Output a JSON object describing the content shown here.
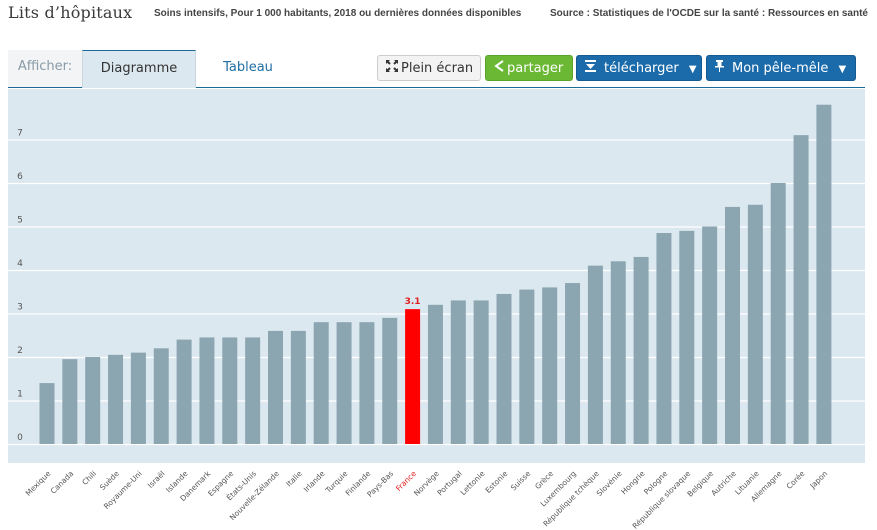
{
  "header": {
    "title": "Lits d’hôpitaux",
    "subtitle": "Soins intensifs, Pour 1 000 habitants, 2018 ou dernières données disponibles",
    "source": "Source : Statistiques de l'OCDE sur la santé : Ressources en santé"
  },
  "toolbar": {
    "afficher_label": "Afficher:",
    "tabs": [
      {
        "label": "Diagramme",
        "active": true
      },
      {
        "label": "Tableau",
        "active": false
      }
    ],
    "buttons": {
      "plein_ecran": {
        "label": "Plein écran",
        "icon": "fullscreen-icon"
      },
      "partager": {
        "label": "partager",
        "icon": "share-icon"
      },
      "telecharger": {
        "label": "télécharger",
        "icon": "download-icon",
        "caret": "▼"
      },
      "pele_mele": {
        "label": "Mon pêle-mêle",
        "icon": "pin-icon",
        "caret": "▼"
      }
    }
  },
  "colors": {
    "bar": "#8ba5b1",
    "highlight": "#ff0000",
    "panel_bg": "#dce8ef",
    "gridline": "#ffffff",
    "accent_blue": "#1b6bab",
    "share_green": "#6ab833"
  },
  "chart_data": {
    "type": "bar",
    "title": "Lits d’hôpitaux",
    "subtitle": "Soins intensifs, Pour 1 000 habitants, 2018 ou dernières données disponibles",
    "xlabel": "",
    "ylabel": "",
    "ylim": [
      0,
      8
    ],
    "yticks": [
      0,
      1,
      2,
      3,
      4,
      5,
      6,
      7
    ],
    "grid": true,
    "highlight": {
      "category": "France",
      "label": "3.1"
    },
    "categories": [
      "Mexique",
      "Canada",
      "Chili",
      "Suède",
      "Royaume-Uni",
      "Israël",
      "Islande",
      "Danemark",
      "Espagne",
      "États-Unis",
      "Nouvelle-Zélande",
      "Italie",
      "Irlande",
      "Turquie",
      "Finlande",
      "Pays-Bas",
      "France",
      "Norvège",
      "Portugal",
      "Lettonie",
      "Estonie",
      "Suisse",
      "Grèce",
      "Luxembourg",
      "République tchèque",
      "Slovénie",
      "Hongrie",
      "Pologne",
      "République slovaque",
      "Belgique",
      "Autriche",
      "Lituanie",
      "Allemagne",
      "Corée",
      "Japon"
    ],
    "values": [
      1.4,
      1.95,
      2.0,
      2.05,
      2.1,
      2.2,
      2.4,
      2.45,
      2.45,
      2.45,
      2.6,
      2.6,
      2.8,
      2.8,
      2.8,
      2.9,
      3.1,
      3.2,
      3.3,
      3.3,
      3.45,
      3.55,
      3.6,
      3.7,
      4.1,
      4.2,
      4.3,
      4.85,
      4.9,
      5.0,
      5.45,
      5.5,
      6.0,
      7.1,
      7.8
    ]
  }
}
